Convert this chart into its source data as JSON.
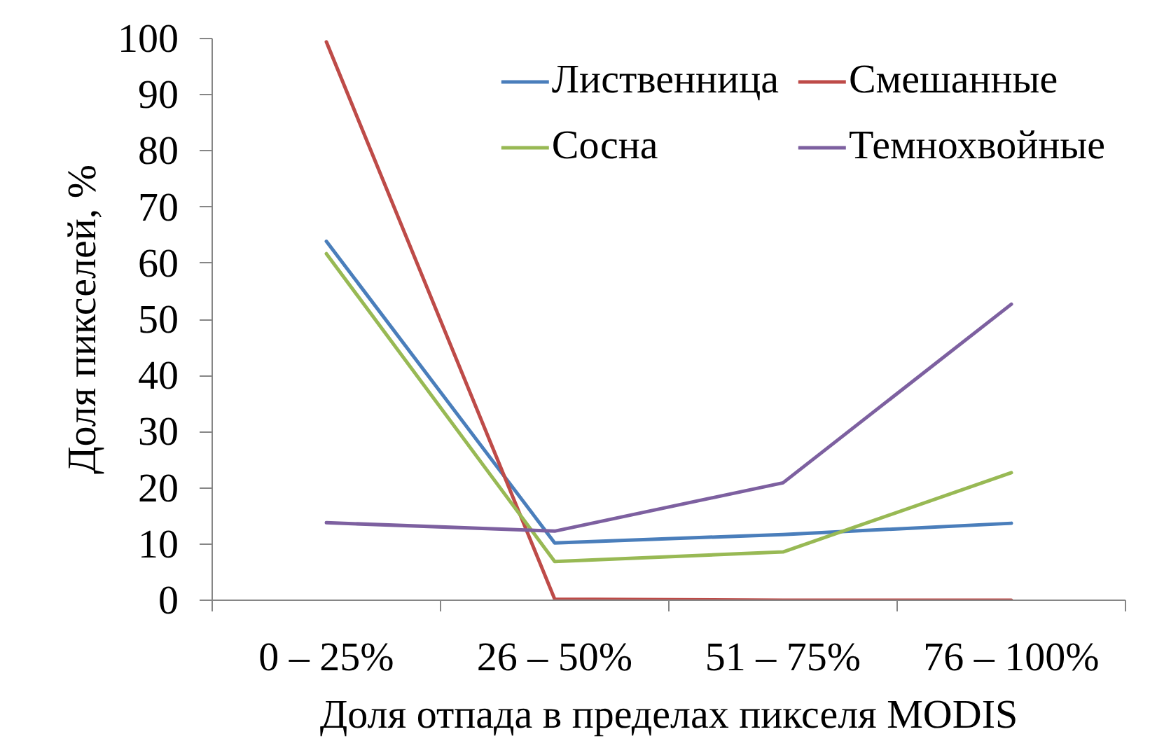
{
  "chart_data": {
    "type": "line",
    "xlabel": "Доля отпада в пределах пикселя MODIS",
    "ylabel": "Доля пикселей, %",
    "categories": [
      "0 – 25%",
      "26 – 50%",
      "51 – 75%",
      "76 – 100%"
    ],
    "ylim": [
      0,
      100
    ],
    "yticks": [
      0,
      10,
      20,
      30,
      40,
      50,
      60,
      70,
      80,
      90,
      100
    ],
    "legend": "top right",
    "line_style": "solid",
    "series": [
      {
        "name": "Лиственница",
        "color": "#4a7ebb",
        "values": [
          63.9,
          10.2,
          11.7,
          13.7
        ]
      },
      {
        "name": "Смешанные",
        "color": "#be4b48",
        "values": [
          99.4,
          0.2,
          0,
          0
        ]
      },
      {
        "name": "Сосна",
        "color": "#98b954",
        "values": [
          61.7,
          6.9,
          8.6,
          22.7
        ]
      },
      {
        "name": "Темнохвойные",
        "color": "#7d60a0",
        "values": [
          13.8,
          12.3,
          20.9,
          52.7
        ]
      }
    ]
  }
}
